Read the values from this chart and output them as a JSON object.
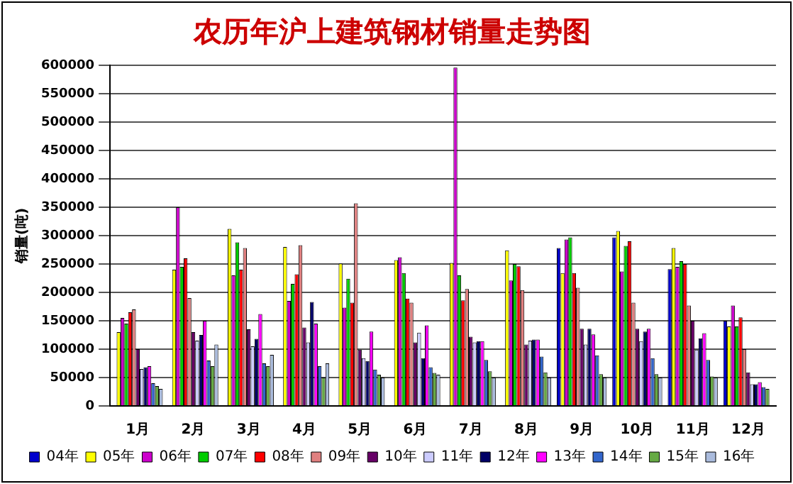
{
  "chart_data": {
    "type": "bar",
    "title": "农历年沪上建筑钢材销量走势图",
    "ylabel": "销量(吨)",
    "categories": [
      "1月",
      "2月",
      "3月",
      "4月",
      "5月",
      "6月",
      "7月",
      "8月",
      "9月",
      "10月",
      "11月",
      "12月"
    ],
    "ylim": [
      0,
      600000
    ],
    "yticks": [
      0,
      50000,
      100000,
      150000,
      200000,
      250000,
      300000,
      350000,
      400000,
      450000,
      500000,
      550000,
      600000
    ],
    "grid": "y",
    "legend": "bottom",
    "series": [
      {
        "name": "04年",
        "color": "#0000cc",
        "values": [
          null,
          null,
          null,
          null,
          null,
          null,
          null,
          null,
          278000,
          297000,
          241000,
          150000
        ]
      },
      {
        "name": "05年",
        "color": "#ffff00",
        "values": [
          130000,
          240000,
          312000,
          280000,
          251000,
          257000,
          252000,
          274000,
          234000,
          308000,
          278000,
          140000
        ]
      },
      {
        "name": "06年",
        "color": "#cc00cc",
        "values": [
          155000,
          350000,
          230000,
          185000,
          173000,
          262000,
          596000,
          221000,
          293000,
          237000,
          245000,
          177000
        ]
      },
      {
        "name": "07年",
        "color": "#00cc00",
        "values": [
          145000,
          245000,
          288000,
          215000,
          224000,
          234000,
          230000,
          250000,
          297000,
          282000,
          255000,
          140000
        ]
      },
      {
        "name": "08年",
        "color": "#ff0000",
        "values": [
          165000,
          260000,
          240000,
          232000,
          182000,
          189000,
          186000,
          246000,
          234000,
          290000,
          250000,
          156000
        ]
      },
      {
        "name": "09年",
        "color": "#e08080",
        "values": [
          170000,
          190000,
          278000,
          283000,
          357000,
          182000,
          206000,
          204000,
          208000,
          182000,
          177000,
          100000
        ]
      },
      {
        "name": "10年",
        "color": "#660066",
        "values": [
          100000,
          130000,
          135000,
          138000,
          99000,
          112000,
          122000,
          108000,
          136000,
          136000,
          150000,
          59000
        ]
      },
      {
        "name": "11年",
        "color": "#ccccff",
        "values": [
          65000,
          115000,
          105000,
          112000,
          84000,
          129000,
          112000,
          115000,
          108000,
          114000,
          99000,
          38000
        ]
      },
      {
        "name": "12年",
        "color": "#000066",
        "values": [
          68000,
          125000,
          118000,
          183000,
          79000,
          84000,
          114000,
          117000,
          136000,
          131000,
          119000,
          38000
        ]
      },
      {
        "name": "13年",
        "color": "#ff00ff",
        "values": [
          70000,
          150000,
          162000,
          145000,
          131000,
          142000,
          114000,
          117000,
          126000,
          136000,
          128000,
          42000
        ]
      },
      {
        "name": "14年",
        "color": "#3366cc",
        "values": [
          40000,
          80000,
          75000,
          70000,
          64000,
          68000,
          81000,
          87000,
          89000,
          84000,
          81000,
          33000
        ]
      },
      {
        "name": "15年",
        "color": "#66aa44",
        "values": [
          35000,
          70000,
          70000,
          50000,
          55000,
          58000,
          61000,
          59000,
          56000,
          56000,
          52000,
          30000
        ]
      },
      {
        "name": "16年",
        "color": "#aabbdd",
        "values": [
          30000,
          108000,
          90000,
          75000,
          50000,
          55000,
          50000,
          50000,
          50000,
          50000,
          50000,
          null
        ]
      }
    ]
  }
}
